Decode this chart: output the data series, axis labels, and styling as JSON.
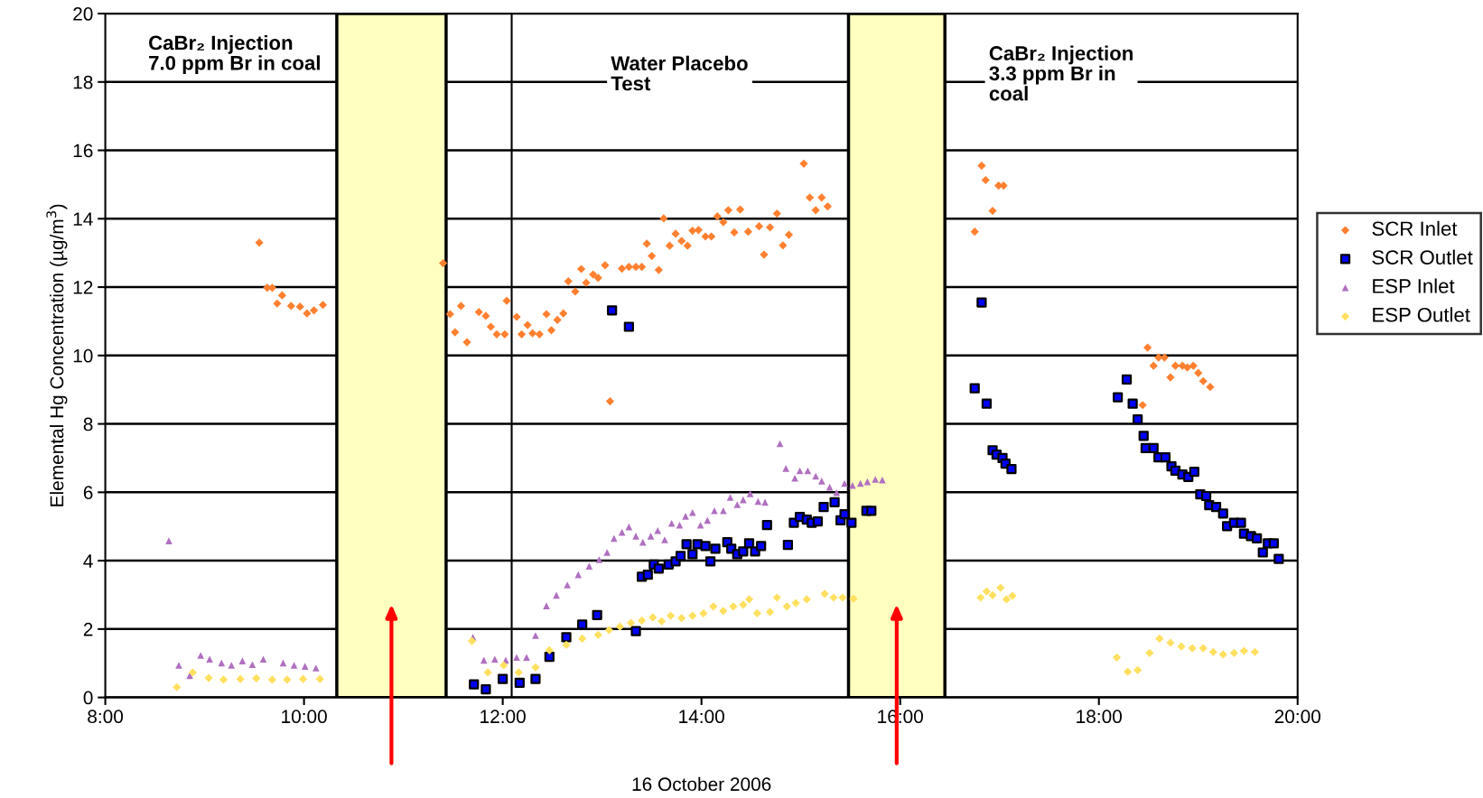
{
  "chart_data": {
    "type": "scatter",
    "xlabel": "16 October 2006",
    "ylabel": "Elemental Hg Concentration (µg/m$^{3}$)",
    "xlim": [
      8,
      20
    ],
    "xticks": [
      {
        "value": 8,
        "label": "8:00"
      },
      {
        "value": 10,
        "label": "10:00"
      },
      {
        "value": 12,
        "label": "12:00"
      },
      {
        "value": 14,
        "label": "14:00"
      },
      {
        "value": 16,
        "label": "16:00"
      },
      {
        "value": 18,
        "label": "18:00"
      },
      {
        "value": 20,
        "label": "20:00"
      }
    ],
    "ylim": [
      0,
      20
    ],
    "yticks": [
      0,
      2,
      4,
      6,
      8,
      10,
      12,
      14,
      16,
      18,
      20
    ],
    "grid": "y",
    "legend": "right",
    "bands": [
      {
        "axis": "x",
        "from": 10.33,
        "to": 11.43,
        "color": "#ffffc0"
      },
      {
        "axis": "x",
        "from": 15.48,
        "to": 16.45,
        "color": "#ffffc0"
      }
    ],
    "ref_lines": [
      {
        "axis": "x",
        "value": 12.09,
        "color": "#000000"
      }
    ],
    "annotations": [
      "CaBr₂ Injection\n7.0 ppm Br in coal",
      "Water Placebo\nTest",
      "CaBr₂ Injection\n3.3 ppm Br in\ncoal"
    ],
    "series": [
      {
        "name": "SCR Inlet",
        "color": "#ff8030",
        "marker": "diamond",
        "x": [
          9.55,
          9.63,
          9.68,
          9.78,
          9.73,
          9.87,
          9.96,
          10.03,
          10.1,
          10.19,
          11.4,
          11.47,
          11.58,
          11.52,
          11.64,
          11.76,
          11.83,
          11.88,
          11.94,
          12.02,
          12.04,
          12.14,
          12.19,
          12.25,
          12.3,
          12.37,
          12.44,
          12.49,
          12.55,
          12.61,
          12.66,
          12.73,
          12.79,
          12.84,
          12.91,
          12.96,
          13.03,
          13.08,
          13.2,
          13.27,
          13.34,
          13.4,
          13.45,
          13.5,
          13.57,
          13.62,
          13.68,
          13.74,
          13.8,
          13.86,
          13.91,
          13.97,
          14.04,
          14.1,
          14.16,
          14.22,
          14.27,
          14.39,
          14.33,
          14.47,
          14.58,
          14.69,
          14.63,
          14.76,
          14.88,
          14.82,
          15.03,
          15.09,
          15.21,
          15.15,
          15.27,
          16.82,
          16.86,
          16.99,
          17.04,
          16.93,
          16.75,
          18.49,
          18.55,
          18.6,
          18.66,
          18.72,
          18.77,
          18.84,
          18.89,
          18.95,
          19.0,
          19.05,
          19.12,
          18.44
        ],
        "values": [
          13.3,
          11.98,
          11.98,
          11.76,
          11.52,
          11.45,
          11.43,
          11.23,
          11.32,
          11.48,
          12.7,
          11.21,
          11.45,
          10.68,
          10.39,
          11.27,
          11.16,
          10.84,
          10.62,
          10.62,
          11.6,
          11.13,
          10.62,
          10.89,
          10.65,
          10.62,
          11.21,
          10.74,
          11.04,
          11.23,
          12.17,
          11.87,
          12.53,
          12.13,
          12.37,
          12.27,
          12.64,
          8.66,
          12.54,
          12.59,
          12.59,
          12.59,
          13.27,
          12.91,
          12.5,
          14.01,
          13.21,
          13.56,
          13.35,
          13.21,
          13.65,
          13.67,
          13.48,
          13.48,
          14.07,
          13.9,
          14.25,
          14.27,
          13.6,
          13.62,
          13.78,
          13.75,
          12.95,
          14.15,
          13.53,
          13.22,
          15.61,
          14.62,
          14.62,
          14.25,
          14.36,
          15.55,
          15.13,
          14.97,
          14.97,
          14.23,
          13.62,
          10.23,
          9.7,
          9.94,
          9.94,
          9.36,
          9.7,
          9.7,
          9.65,
          9.7,
          9.49,
          9.25,
          9.08,
          8.55
        ]
      },
      {
        "name": "SCR Outlet",
        "color": "#0000ff",
        "marker": "square",
        "x": [
          11.71,
          11.83,
          12.0,
          12.17,
          12.33,
          12.47,
          12.64,
          12.8,
          12.95,
          13.1,
          13.27,
          13.34,
          13.4,
          13.46,
          13.52,
          13.57,
          13.67,
          13.74,
          13.79,
          13.85,
          13.91,
          13.96,
          14.04,
          14.09,
          14.14,
          14.26,
          14.3,
          14.36,
          14.42,
          14.48,
          14.54,
          14.6,
          14.66,
          14.87,
          14.93,
          14.99,
          15.06,
          15.11,
          15.17,
          15.23,
          15.34,
          15.4,
          15.44,
          15.51,
          15.66,
          15.71,
          16.82,
          16.75,
          16.87,
          16.93,
          16.97,
          17.03,
          17.06,
          17.12,
          18.19,
          18.28,
          18.34,
          18.39,
          18.45,
          18.47,
          18.55,
          18.6,
          18.67,
          18.73,
          18.77,
          18.84,
          18.9,
          18.96,
          19.02,
          19.08,
          19.11,
          19.18,
          19.25,
          19.29,
          19.36,
          19.43,
          19.46,
          19.53,
          19.59,
          19.65,
          19.7,
          19.76,
          19.81
        ],
        "values": [
          0.38,
          0.24,
          0.54,
          0.43,
          0.54,
          1.19,
          1.76,
          2.13,
          2.41,
          11.32,
          10.84,
          1.94,
          3.53,
          3.59,
          3.89,
          3.77,
          3.89,
          3.98,
          4.14,
          4.48,
          4.19,
          4.48,
          4.43,
          3.98,
          4.35,
          4.54,
          4.35,
          4.19,
          4.27,
          4.51,
          4.27,
          4.43,
          5.04,
          4.46,
          5.11,
          5.28,
          5.2,
          5.11,
          5.15,
          5.57,
          5.71,
          5.18,
          5.36,
          5.11,
          5.46,
          5.46,
          11.55,
          9.04,
          8.59,
          7.23,
          7.1,
          7.0,
          6.84,
          6.68,
          8.78,
          9.3,
          8.59,
          8.13,
          7.65,
          7.29,
          7.29,
          7.02,
          7.02,
          6.76,
          6.63,
          6.52,
          6.45,
          6.6,
          5.94,
          5.89,
          5.62,
          5.57,
          5.38,
          5.01,
          5.11,
          5.11,
          4.79,
          4.72,
          4.65,
          4.24,
          4.51,
          4.51,
          4.05
        ]
      },
      {
        "name": "ESP Inlet",
        "color": "#b070c0",
        "marker": "triangle",
        "x": [
          8.64,
          8.74,
          8.85,
          8.96,
          9.05,
          9.17,
          9.27,
          9.38,
          9.48,
          9.59,
          9.79,
          9.9,
          10.01,
          10.12,
          11.7,
          11.81,
          11.92,
          12.03,
          12.14,
          12.24,
          12.33,
          12.44,
          12.54,
          12.65,
          12.76,
          12.87,
          12.97,
          13.05,
          13.12,
          13.2,
          13.27,
          13.34,
          13.41,
          13.49,
          13.56,
          13.63,
          13.7,
          13.78,
          13.84,
          13.91,
          13.99,
          14.06,
          14.13,
          14.22,
          14.29,
          14.36,
          14.42,
          14.49,
          14.57,
          14.64,
          14.79,
          14.85,
          14.94,
          14.99,
          15.07,
          15.15,
          15.21,
          15.29,
          15.36,
          15.44,
          15.52,
          15.6,
          15.67,
          15.75,
          15.82
        ],
        "values": [
          4.58,
          0.94,
          0.64,
          1.23,
          1.12,
          1.01,
          0.94,
          1.07,
          0.96,
          1.12,
          1.01,
          0.94,
          0.91,
          0.86,
          1.76,
          1.09,
          1.12,
          1.09,
          1.17,
          1.17,
          1.81,
          2.68,
          2.99,
          3.29,
          3.59,
          3.84,
          4.03,
          4.24,
          4.65,
          4.83,
          4.99,
          4.72,
          4.54,
          4.72,
          4.88,
          4.61,
          5.09,
          5.04,
          5.3,
          5.41,
          5.04,
          5.18,
          5.46,
          5.46,
          5.85,
          5.64,
          5.78,
          5.96,
          5.73,
          5.71,
          7.42,
          6.7,
          6.41,
          6.63,
          6.63,
          6.47,
          6.33,
          6.15,
          5.99,
          6.26,
          6.2,
          6.26,
          6.31,
          6.38,
          6.36
        ]
      },
      {
        "name": "ESP Outlet",
        "color": "#ffe060",
        "marker": "diamond",
        "x": [
          8.72,
          8.88,
          9.04,
          9.19,
          9.36,
          9.52,
          9.68,
          9.83,
          9.99,
          10.16,
          11.69,
          11.85,
          12.01,
          12.16,
          12.33,
          12.47,
          12.64,
          12.8,
          12.96,
          13.07,
          13.18,
          13.29,
          13.4,
          13.51,
          13.6,
          13.69,
          13.8,
          13.91,
          14.02,
          14.12,
          14.22,
          14.32,
          14.42,
          14.48,
          14.56,
          14.69,
          14.76,
          14.86,
          14.95,
          15.06,
          15.24,
          15.33,
          15.42,
          15.53,
          16.81,
          16.87,
          16.93,
          17.01,
          17.07,
          17.13,
          18.18,
          18.29,
          18.39,
          18.51,
          18.61,
          18.72,
          18.83,
          18.94,
          19.05,
          19.15,
          19.25,
          19.36,
          19.46,
          19.57
        ],
        "values": [
          0.3,
          0.73,
          0.57,
          0.52,
          0.54,
          0.56,
          0.52,
          0.52,
          0.54,
          0.54,
          1.65,
          0.73,
          0.94,
          0.73,
          0.88,
          1.38,
          1.54,
          1.72,
          1.83,
          1.97,
          2.07,
          2.18,
          2.25,
          2.34,
          2.23,
          2.39,
          2.32,
          2.39,
          2.46,
          2.66,
          2.53,
          2.66,
          2.71,
          2.87,
          2.46,
          2.5,
          2.92,
          2.66,
          2.76,
          2.87,
          3.03,
          2.92,
          2.92,
          2.89,
          2.92,
          3.1,
          2.99,
          3.21,
          2.87,
          2.97,
          1.17,
          0.75,
          0.8,
          1.3,
          1.72,
          1.6,
          1.49,
          1.44,
          1.44,
          1.33,
          1.26,
          1.3,
          1.36,
          1.33
        ]
      }
    ]
  }
}
